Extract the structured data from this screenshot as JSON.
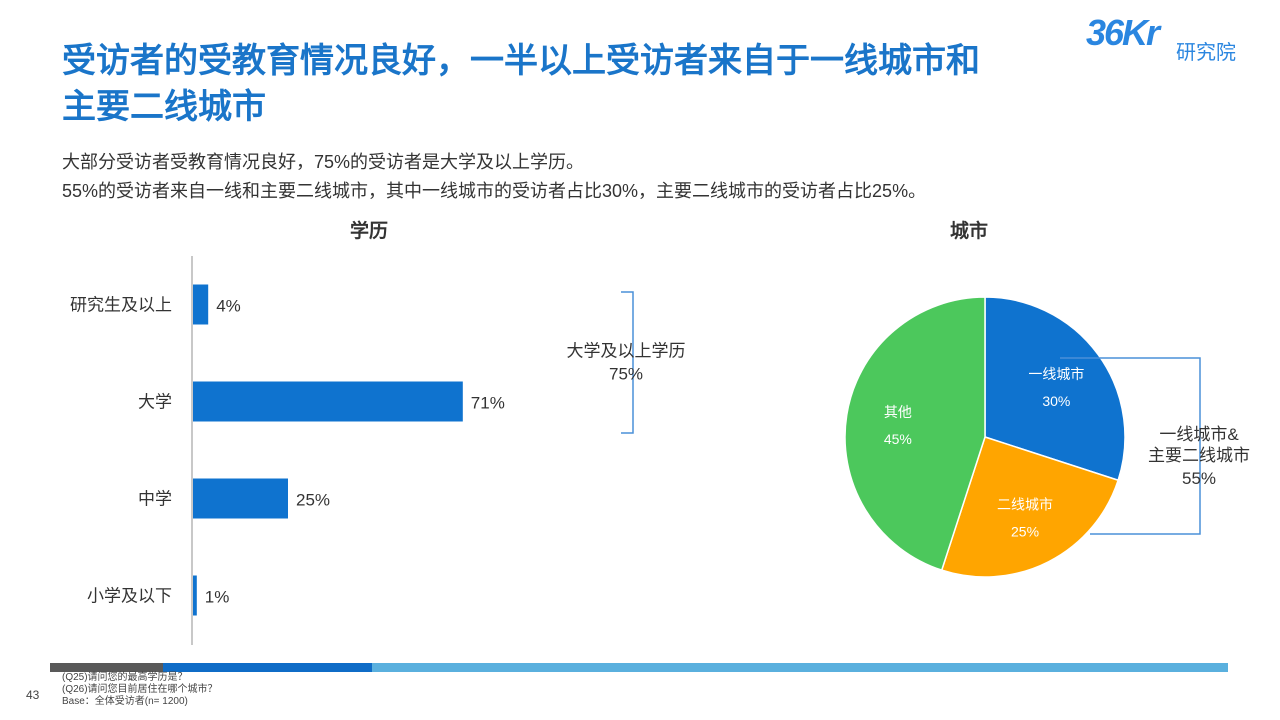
{
  "slide": {
    "title_line1": "受访者的受教育情况良好，一半以上受访者来自于一线城市和",
    "title_line2": "主要二线城市",
    "logo_mark": "36Kr",
    "logo_sub": "研究院",
    "summary_line1": "大部分受访者受教育情况良好，75%的受访者是大学及以上学历。",
    "summary_line2": "55%的受访者来自一线和主要二线城市，其中一线城市的受访者占比30%，主要二线城市的受访者占比25%。",
    "page_number": "43",
    "notes": [
      "(Q25)请问您的最高学历是？",
      "(Q26)请问您目前居住在哪个城市？",
      "Base：全体受访者(n= 1200)"
    ],
    "footer_colors": [
      "#595959",
      "#0f6cc7",
      "#5ab0de"
    ]
  },
  "chart_data": [
    {
      "type": "bar",
      "orientation": "horizontal",
      "title": "学历",
      "categories": [
        "研究生及以上",
        "大学",
        "中学",
        "小学及以下"
      ],
      "values": [
        4,
        71,
        25,
        1
      ],
      "value_labels": [
        "4%",
        "71%",
        "25%",
        "1%"
      ],
      "xlim": [
        0,
        100
      ],
      "color": "#0f73cf",
      "bracket_label_line1": "大学及以上学历",
      "bracket_label_line2": "75%"
    },
    {
      "type": "pie",
      "title": "城市",
      "slices": [
        {
          "label": "一线城市",
          "value": 30,
          "value_label": "30%",
          "color": "#0f73cf"
        },
        {
          "label": "二线城市",
          "value": 25,
          "value_label": "25%",
          "color": "#ffa500"
        },
        {
          "label": "其他",
          "value": 45,
          "value_label": "45%",
          "color": "#4cc85c"
        }
      ],
      "bracket_label_line1": "一线城市&",
      "bracket_label_line2": "主要二线城市",
      "bracket_label_line3": "55%"
    }
  ]
}
